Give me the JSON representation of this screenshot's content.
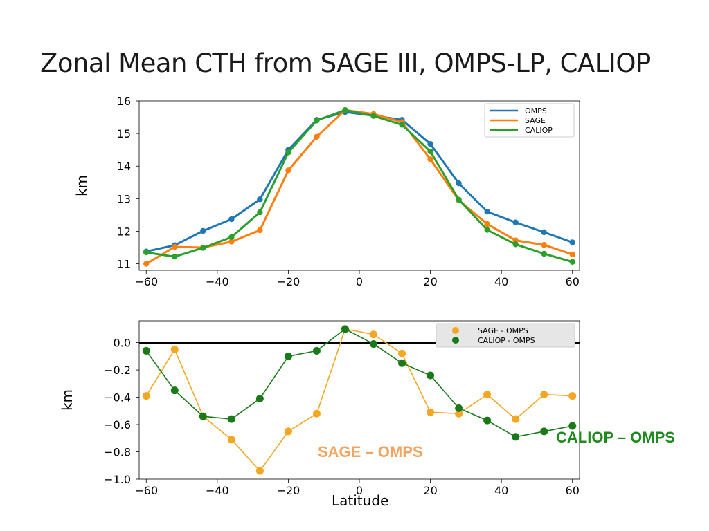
{
  "title": "Zonal Mean CTH from SAGE III, OMPS-LP, CALIOP",
  "chart_data": [
    {
      "type": "line",
      "ylabel": "km",
      "xlabel": "",
      "xlim": [
        -62,
        62
      ],
      "ylim": [
        10.8,
        16
      ],
      "xticks": [
        "−60",
        "−40",
        "−20",
        "0",
        "20",
        "40",
        "60"
      ],
      "yticks": [
        "11",
        "12",
        "13",
        "14",
        "15",
        "16"
      ],
      "legend_position": "top-right",
      "x": [
        -60,
        -52,
        -44,
        -36,
        -28,
        -20,
        -12,
        -4,
        4,
        12,
        20,
        28,
        36,
        44,
        52,
        60
      ],
      "series": [
        {
          "name": "OMPS",
          "color": "#1f77b4",
          "values": [
            11.38,
            11.57,
            12.01,
            12.37,
            12.98,
            14.5,
            15.42,
            15.66,
            15.55,
            15.42,
            14.68,
            13.47,
            12.6,
            12.27,
            11.97,
            11.66
          ]
        },
        {
          "name": "SAGE",
          "color": "#ff7f0e",
          "values": [
            11.0,
            11.52,
            11.5,
            11.68,
            12.03,
            13.87,
            14.9,
            15.72,
            15.6,
            15.35,
            14.21,
            12.95,
            12.22,
            11.72,
            11.58,
            11.29
          ]
        },
        {
          "name": "CALIOP",
          "color": "#2ca02c",
          "values": [
            11.35,
            11.22,
            11.49,
            11.82,
            12.58,
            14.42,
            15.4,
            15.72,
            15.54,
            15.27,
            14.45,
            12.97,
            12.04,
            11.6,
            11.31,
            11.06
          ]
        }
      ]
    },
    {
      "type": "line",
      "ylabel": "km",
      "xlabel": "Latitude",
      "xlim": [
        -62,
        62
      ],
      "ylim": [
        -1.0,
        0.16
      ],
      "xticks": [
        "−60",
        "−40",
        "−20",
        "0",
        "20",
        "40",
        "60"
      ],
      "yticks": [
        "0.0",
        "−0.2",
        "−0.4",
        "−0.6",
        "−0.8",
        "−1.0"
      ],
      "legend_position": "top-right",
      "reference_line": 0.0,
      "x": [
        -60,
        -52,
        -44,
        -36,
        -28,
        -20,
        -12,
        -4,
        4,
        12,
        20,
        28,
        36,
        44,
        52,
        60
      ],
      "series": [
        {
          "name": "SAGE - OMPS",
          "color": "#f5a623",
          "values": [
            -0.39,
            -0.05,
            -0.54,
            -0.71,
            -0.94,
            -0.65,
            -0.52,
            0.1,
            0.06,
            -0.08,
            -0.51,
            -0.52,
            -0.38,
            -0.56,
            -0.38,
            -0.39
          ]
        },
        {
          "name": "CALIOP - OMPS",
          "color": "#1a7a1a",
          "values": [
            -0.06,
            -0.35,
            -0.54,
            -0.56,
            -0.41,
            -0.1,
            -0.06,
            0.1,
            -0.01,
            -0.15,
            -0.24,
            -0.48,
            -0.57,
            -0.69,
            -0.65,
            -0.61
          ]
        }
      ],
      "annotations": [
        {
          "text": "SAGE – OMPS",
          "color": "#f4a460"
        },
        {
          "text": "CALIOP – OMPS",
          "color": "#1f8a1f"
        }
      ]
    }
  ]
}
